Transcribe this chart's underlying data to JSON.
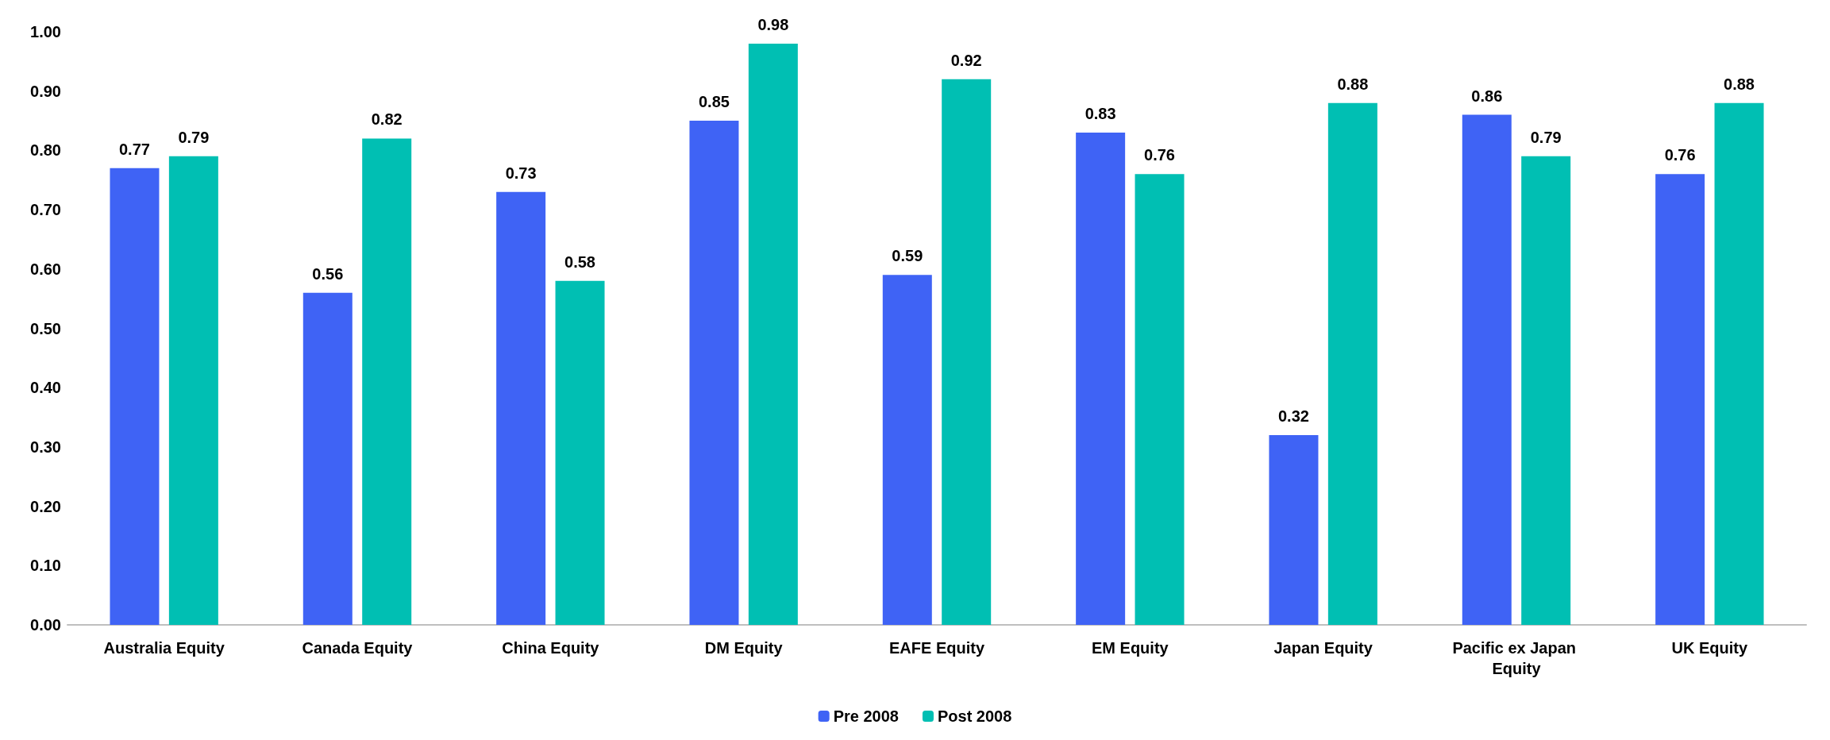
{
  "chart_data": {
    "type": "bar",
    "categories": [
      "Australia Equity",
      "Canada Equity",
      "China Equity",
      "DM Equity",
      "EAFE Equity",
      "EM Equity",
      "Japan Equity",
      "Pacific ex Japan Equity",
      "UK Equity"
    ],
    "series": [
      {
        "name": "Pre 2008",
        "color": "#3f63f5",
        "values": [
          0.77,
          0.56,
          0.73,
          0.85,
          0.59,
          0.83,
          0.32,
          0.86,
          0.76
        ]
      },
      {
        "name": "Post 2008",
        "color": "#00bfb3",
        "values": [
          0.79,
          0.82,
          0.58,
          0.98,
          0.92,
          0.76,
          0.88,
          0.79,
          0.88
        ]
      }
    ],
    "ylim": [
      0,
      1
    ],
    "yticks": [
      {
        "value": 0,
        "label": "0.00"
      },
      {
        "value": 0.1,
        "label": "0.10"
      },
      {
        "value": 0.2,
        "label": "0.20"
      },
      {
        "value": 0.3,
        "label": "0.30"
      },
      {
        "value": 0.4,
        "label": "0.40"
      },
      {
        "value": 0.5,
        "label": "0.50"
      },
      {
        "value": 0.6,
        "label": "0.60"
      },
      {
        "value": 0.7,
        "label": "0.70"
      },
      {
        "value": 0.8,
        "label": "0.80"
      },
      {
        "value": 0.9,
        "label": "0.90"
      },
      {
        "value": 1,
        "label": "1.00"
      }
    ],
    "data_labels": true,
    "grid": false,
    "legend": "bottom"
  }
}
